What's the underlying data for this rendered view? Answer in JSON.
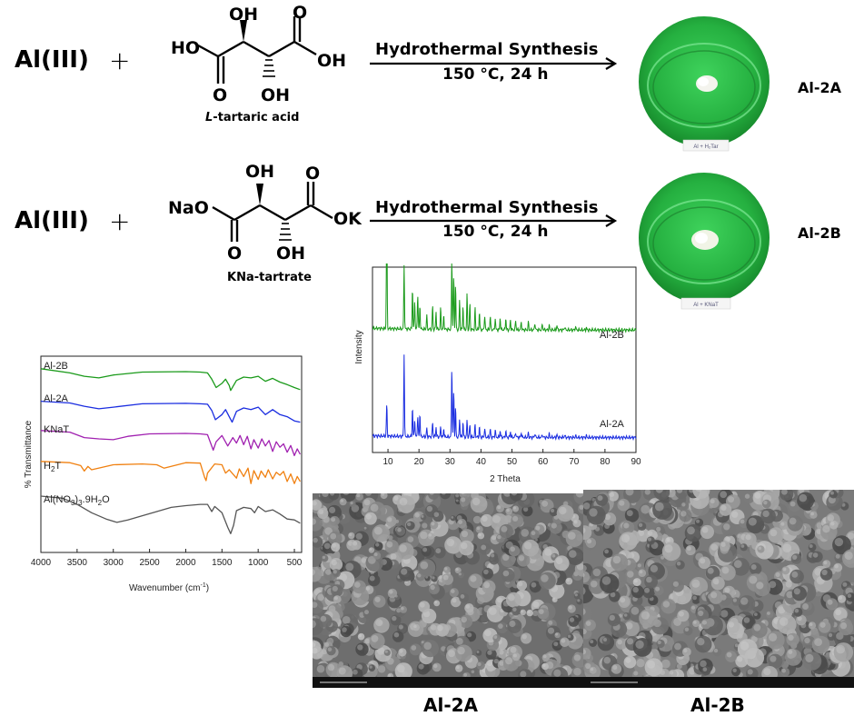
{
  "colors": {
    "ftir_al2b": "#1a9a1a",
    "ftir_al2a": "#1a2de0",
    "ftir_knat": "#a020b0",
    "ftir_h2t": "#f08010",
    "ftir_alno3": "#555555",
    "xrd_al2b": "#1a9a1a",
    "xrd_al2a": "#1a2de0",
    "dish_green": "#2fb84a",
    "sem_gray": "#8a8a8a"
  },
  "reaction1": {
    "metal": "Al(III)",
    "plus": "+",
    "oh_top": "OH",
    "o_top": "O",
    "ho_left": "HO",
    "oh_right": "OH",
    "o_bottom": "O",
    "oh_bottom": "OH",
    "reagent_italic": "L",
    "reagent_rest": "-tartaric acid",
    "condition_top": "Hydrothermal Synthesis",
    "condition_bottom": "150 °C, 24 h",
    "dish_label": "Al + H₂Tar",
    "product": "Al-2A"
  },
  "reaction2": {
    "metal": "Al(III)",
    "plus": "+",
    "oh_top": "OH",
    "o_top": "O",
    "nao_left": "NaO",
    "ok_right": "OK",
    "o_bottom": "O",
    "oh_bottom": "OH",
    "reagent": "KNa-tartrate",
    "condition_top": "Hydrothermal Synthesis",
    "condition_bottom": "150 °C, 24 h",
    "dish_label": "Al + KNaT",
    "product": "Al-2B"
  },
  "chart_data": [
    {
      "type": "line",
      "x_label_main": "Wavenumber (cm",
      "x_label_sup": "-1",
      "x_label_close": ")",
      "y_label": "% Transmittance",
      "xlim": [
        4000,
        400
      ],
      "x_ticks": [
        "4000",
        "3500",
        "3000",
        "2500",
        "2000",
        "1500",
        "1000",
        "500"
      ],
      "series": [
        {
          "name": "Al-2B",
          "x": [
            4000,
            3600,
            3400,
            3200,
            3000,
            2600,
            2000,
            1800,
            1700,
            1640,
            1580,
            1500,
            1450,
            1400,
            1380,
            1300,
            1200,
            1100,
            1000,
            900,
            800,
            700,
            600,
            500,
            420
          ],
          "y": [
            2.7,
            2.6,
            2.52,
            2.48,
            2.55,
            2.62,
            2.63,
            2.62,
            2.6,
            2.45,
            2.25,
            2.35,
            2.45,
            2.3,
            2.18,
            2.42,
            2.5,
            2.48,
            2.52,
            2.4,
            2.47,
            2.38,
            2.32,
            2.25,
            2.2
          ]
        },
        {
          "name": "Al-2A",
          "x": [
            4000,
            3600,
            3400,
            3200,
            3000,
            2600,
            2000,
            1800,
            1700,
            1640,
            1590,
            1500,
            1450,
            1400,
            1360,
            1300,
            1200,
            1100,
            1000,
            900,
            800,
            700,
            600,
            500,
            420
          ],
          "y": [
            1.92,
            1.88,
            1.8,
            1.74,
            1.78,
            1.86,
            1.87,
            1.86,
            1.85,
            1.7,
            1.48,
            1.6,
            1.72,
            1.55,
            1.42,
            1.68,
            1.76,
            1.72,
            1.78,
            1.6,
            1.72,
            1.6,
            1.55,
            1.45,
            1.42
          ]
        },
        {
          "name": "KNaT",
          "x": [
            4000,
            3600,
            3400,
            3200,
            3000,
            2800,
            2500,
            2000,
            1800,
            1700,
            1620,
            1580,
            1500,
            1420,
            1350,
            1300,
            1250,
            1200,
            1150,
            1100,
            1060,
            1000,
            950,
            900,
            850,
            800,
            750,
            700,
            650,
            600,
            550,
            500,
            460,
            420
          ],
          "y": [
            1.22,
            1.18,
            1.05,
            1.02,
            1.0,
            1.08,
            1.14,
            1.15,
            1.14,
            1.12,
            0.75,
            0.95,
            1.1,
            0.85,
            1.05,
            0.92,
            1.1,
            0.88,
            1.08,
            0.78,
            1.0,
            0.8,
            1.02,
            0.85,
            0.98,
            0.72,
            0.95,
            0.82,
            0.9,
            0.7,
            0.86,
            0.62,
            0.78,
            0.65
          ]
        },
        {
          "name": "H2T",
          "x": [
            4000,
            3600,
            3450,
            3400,
            3350,
            3300,
            3000,
            2600,
            2400,
            2300,
            2000,
            1800,
            1740,
            1720,
            1700,
            1600,
            1500,
            1450,
            1400,
            1300,
            1260,
            1200,
            1140,
            1100,
            1060,
            1000,
            960,
            900,
            860,
            800,
            750,
            700,
            650,
            600,
            550,
            500,
            460,
            420
          ],
          "y": [
            0.48,
            0.45,
            0.38,
            0.25,
            0.36,
            0.28,
            0.4,
            0.42,
            0.4,
            0.32,
            0.45,
            0.44,
            0.1,
            0.02,
            0.2,
            0.42,
            0.4,
            0.2,
            0.28,
            0.08,
            0.3,
            0.12,
            0.32,
            -0.05,
            0.26,
            0.05,
            0.25,
            0.1,
            0.28,
            0.06,
            0.22,
            0.15,
            0.24,
            0.0,
            0.18,
            -0.05,
            0.12,
            0.0
          ]
        },
        {
          "name": "Al(NO3)3.9H2O",
          "x": [
            4000,
            3700,
            3500,
            3300,
            3100,
            2950,
            2800,
            2600,
            2400,
            2200,
            2000,
            1800,
            1700,
            1640,
            1600,
            1500,
            1420,
            1380,
            1340,
            1300,
            1200,
            1100,
            1050,
            1000,
            900,
            800,
            700,
            600,
            500,
            420
          ],
          "y": [
            -0.35,
            -0.4,
            -0.55,
            -0.75,
            -0.9,
            -0.98,
            -0.92,
            -0.82,
            -0.72,
            -0.62,
            -0.58,
            -0.55,
            -0.55,
            -0.72,
            -0.6,
            -0.75,
            -1.1,
            -1.25,
            -1.05,
            -0.7,
            -0.62,
            -0.65,
            -0.75,
            -0.6,
            -0.72,
            -0.68,
            -0.78,
            -0.9,
            -0.92,
            -1.0
          ]
        }
      ],
      "series_labels": {
        "al2b": "Al-2B",
        "al2a": "Al-2A",
        "knat": "KNaT",
        "h2t_main": "H",
        "h2t_sub": "2",
        "h2t_end": "T",
        "alno3_a": "Al(NO",
        "alno3_sub1": "3",
        "alno3_b": ")",
        "alno3_sub2": "3",
        "alno3_c": ".9H",
        "alno3_sub3": "2",
        "alno3_d": "O"
      }
    },
    {
      "type": "line",
      "x_label": "2 Theta",
      "y_label": "Intensity",
      "xlim": [
        5,
        90
      ],
      "x_ticks": [
        "10",
        "20",
        "30",
        "40",
        "50",
        "60",
        "70",
        "80",
        "90"
      ],
      "series": [
        {
          "name": "Al-2B",
          "peaks": [
            [
              9.6,
              1.0
            ],
            [
              15.2,
              0.55
            ],
            [
              17.9,
              0.35
            ],
            [
              18.6,
              0.25
            ],
            [
              19.6,
              0.3
            ],
            [
              20.3,
              0.2
            ],
            [
              22.5,
              0.12
            ],
            [
              24.4,
              0.2
            ],
            [
              25.5,
              0.15
            ],
            [
              27.0,
              0.18
            ],
            [
              28.0,
              0.12
            ],
            [
              30.6,
              0.6
            ],
            [
              31.2,
              0.45
            ],
            [
              31.8,
              0.38
            ],
            [
              33.1,
              0.25
            ],
            [
              34.2,
              0.2
            ],
            [
              35.5,
              0.3
            ],
            [
              36.4,
              0.22
            ],
            [
              38.1,
              0.18
            ],
            [
              39.5,
              0.15
            ],
            [
              41.2,
              0.12
            ],
            [
              43.0,
              0.12
            ],
            [
              44.6,
              0.1
            ],
            [
              46.2,
              0.1
            ],
            [
              48.0,
              0.1
            ],
            [
              49.5,
              0.08
            ],
            [
              51.2,
              0.08
            ],
            [
              53.0,
              0.07
            ],
            [
              55.3,
              0.06
            ],
            [
              57.4,
              0.06
            ],
            [
              59.8,
              0.05
            ],
            [
              62.0,
              0.04
            ],
            [
              64.5,
              0.04
            ],
            [
              67.0,
              0.03
            ],
            [
              70.5,
              0.03
            ],
            [
              74.0,
              0.02
            ]
          ]
        },
        {
          "name": "Al-2A",
          "peaks": [
            [
              9.6,
              0.38
            ],
            [
              15.2,
              1.0
            ],
            [
              17.9,
              0.35
            ],
            [
              18.6,
              0.22
            ],
            [
              19.6,
              0.25
            ],
            [
              20.3,
              0.28
            ],
            [
              22.5,
              0.1
            ],
            [
              24.4,
              0.18
            ],
            [
              25.5,
              0.12
            ],
            [
              27.0,
              0.12
            ],
            [
              28.0,
              0.1
            ],
            [
              30.6,
              0.85
            ],
            [
              31.2,
              0.55
            ],
            [
              31.8,
              0.35
            ],
            [
              33.1,
              0.22
            ],
            [
              34.2,
              0.18
            ],
            [
              35.5,
              0.2
            ],
            [
              36.4,
              0.15
            ],
            [
              38.1,
              0.15
            ],
            [
              39.5,
              0.12
            ],
            [
              41.2,
              0.1
            ],
            [
              43.0,
              0.1
            ],
            [
              44.6,
              0.09
            ],
            [
              46.2,
              0.08
            ],
            [
              48.0,
              0.08
            ],
            [
              49.5,
              0.07
            ],
            [
              51.2,
              0.06
            ],
            [
              53.0,
              0.06
            ],
            [
              55.3,
              0.05
            ],
            [
              57.4,
              0.05
            ],
            [
              59.8,
              0.04
            ],
            [
              62.0,
              0.04
            ],
            [
              64.5,
              0.03
            ],
            [
              67.0,
              0.03
            ],
            [
              70.5,
              0.02
            ],
            [
              74.0,
              0.02
            ]
          ]
        }
      ]
    }
  ],
  "sem": {
    "label_left": "Al-2A",
    "label_right": "Al-2B"
  }
}
